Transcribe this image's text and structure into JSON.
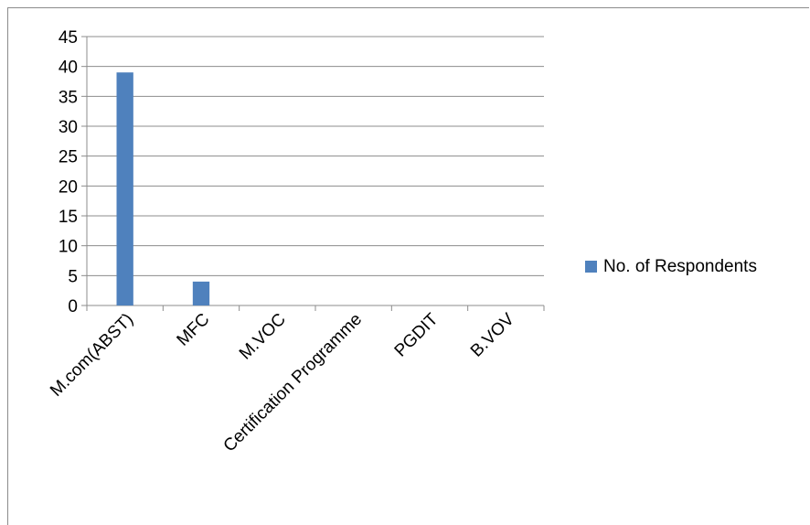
{
  "chart_data": {
    "type": "bar",
    "categories": [
      "M.com(ABST)",
      "MFC",
      "M.VOC",
      "Certification Programme",
      "PGDIT",
      "B.VOV"
    ],
    "series": [
      {
        "name": "No. of Respondents",
        "values": [
          39,
          4,
          0,
          0,
          0,
          0
        ],
        "color": "#4f81bd"
      }
    ],
    "ylim": [
      0,
      45
    ],
    "yticks": [
      0,
      5,
      10,
      15,
      20,
      25,
      30,
      35,
      40,
      45
    ],
    "grid": true,
    "legend_position": "right",
    "title": "",
    "xlabel": "",
    "ylabel": ""
  }
}
